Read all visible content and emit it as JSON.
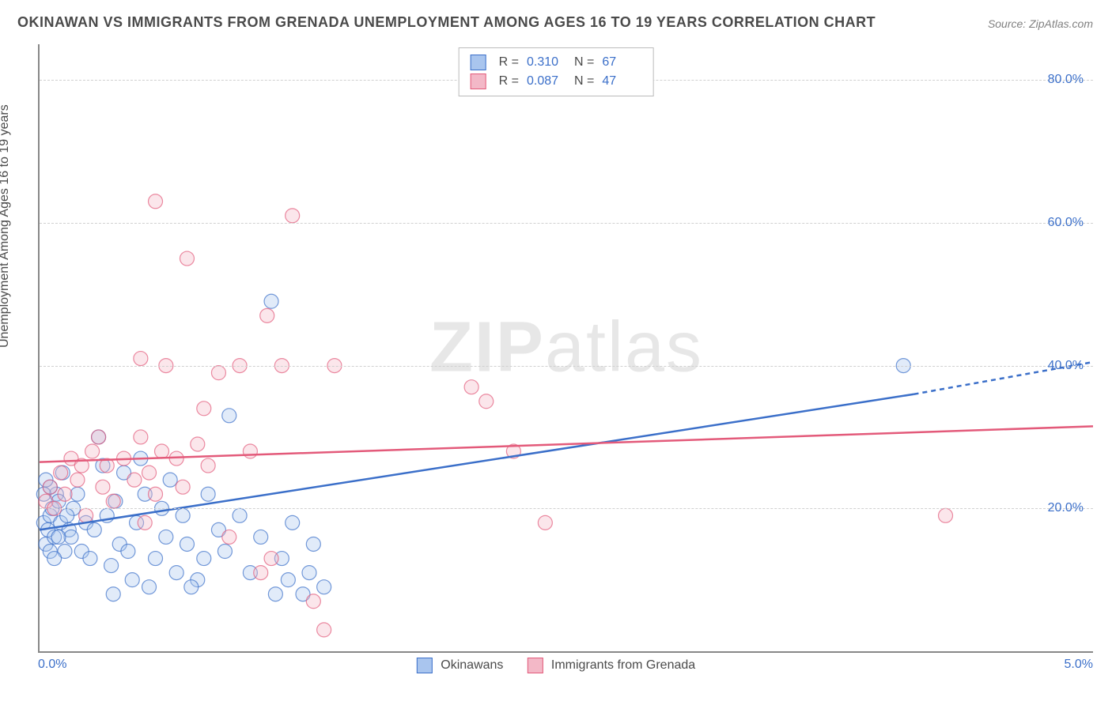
{
  "title": "OKINAWAN VS IMMIGRANTS FROM GRENADA UNEMPLOYMENT AMONG AGES 16 TO 19 YEARS CORRELATION CHART",
  "source": "Source: ZipAtlas.com",
  "watermark": "ZIPatlas",
  "ylabel": "Unemployment Among Ages 16 to 19 years",
  "chart": {
    "type": "scatter",
    "background_color": "#ffffff",
    "grid_color": "#d0d0d0",
    "axis_color": "#888888",
    "text_color": "#4a4a4a",
    "tick_color": "#3b6fc9",
    "xlim": [
      0.0,
      5.0
    ],
    "ylim": [
      0.0,
      85.0
    ],
    "x_ticks": [
      {
        "value": 0.0,
        "label": "0.0%"
      },
      {
        "value": 5.0,
        "label": "5.0%"
      }
    ],
    "y_ticks": [
      {
        "value": 20.0,
        "label": "20.0%"
      },
      {
        "value": 40.0,
        "label": "40.0%"
      },
      {
        "value": 60.0,
        "label": "60.0%"
      },
      {
        "value": 80.0,
        "label": "80.0%"
      }
    ],
    "marker_radius": 9,
    "marker_fill_opacity": 0.35,
    "marker_stroke_width": 1.2,
    "trendline_width": 2.5,
    "series": [
      {
        "name": "Okinawans",
        "color": "#3b6fc9",
        "fill": "#a9c5ee",
        "R": "0.310",
        "N": "67",
        "trend": {
          "x1": 0.0,
          "y1": 17.0,
          "x2": 4.15,
          "y2": 36.0,
          "x2_dash": 5.0,
          "y2_dash": 40.5
        },
        "points": [
          [
            0.02,
            18
          ],
          [
            0.04,
            17
          ],
          [
            0.05,
            19
          ],
          [
            0.03,
            15
          ],
          [
            0.06,
            20
          ],
          [
            0.08,
            22
          ],
          [
            0.1,
            18
          ],
          [
            0.07,
            16
          ],
          [
            0.09,
            21
          ],
          [
            0.05,
            23
          ],
          [
            0.12,
            14
          ],
          [
            0.14,
            17
          ],
          [
            0.16,
            20
          ],
          [
            0.11,
            25
          ],
          [
            0.13,
            19
          ],
          [
            0.15,
            16
          ],
          [
            0.18,
            22
          ],
          [
            0.2,
            14
          ],
          [
            0.22,
            18
          ],
          [
            0.24,
            13
          ],
          [
            0.26,
            17
          ],
          [
            0.28,
            30
          ],
          [
            0.3,
            26
          ],
          [
            0.32,
            19
          ],
          [
            0.34,
            12
          ],
          [
            0.36,
            21
          ],
          [
            0.38,
            15
          ],
          [
            0.4,
            25
          ],
          [
            0.42,
            14
          ],
          [
            0.44,
            10
          ],
          [
            0.46,
            18
          ],
          [
            0.48,
            27
          ],
          [
            0.5,
            22
          ],
          [
            0.55,
            13
          ],
          [
            0.58,
            20
          ],
          [
            0.6,
            16
          ],
          [
            0.62,
            24
          ],
          [
            0.65,
            11
          ],
          [
            0.68,
            19
          ],
          [
            0.7,
            15
          ],
          [
            0.75,
            10
          ],
          [
            0.78,
            13
          ],
          [
            0.8,
            22
          ],
          [
            0.85,
            17
          ],
          [
            0.88,
            14
          ],
          [
            0.9,
            33
          ],
          [
            0.95,
            19
          ],
          [
            1.0,
            11
          ],
          [
            1.05,
            16
          ],
          [
            1.1,
            49
          ],
          [
            1.12,
            8
          ],
          [
            1.15,
            13
          ],
          [
            1.18,
            10
          ],
          [
            1.2,
            18
          ],
          [
            1.25,
            8
          ],
          [
            1.28,
            11
          ],
          [
            1.3,
            15
          ],
          [
            1.35,
            9
          ],
          [
            0.35,
            8
          ],
          [
            0.52,
            9
          ],
          [
            0.72,
            9
          ],
          [
            0.05,
            14
          ],
          [
            0.02,
            22
          ],
          [
            0.03,
            24
          ],
          [
            0.07,
            13
          ],
          [
            0.09,
            16
          ],
          [
            4.1,
            40
          ]
        ]
      },
      {
        "name": "Immigrants from Grenada",
        "color": "#e35a7a",
        "fill": "#f3b8c7",
        "R": "0.087",
        "N": "47",
        "trend": {
          "x1": 0.0,
          "y1": 26.5,
          "x2": 5.0,
          "y2": 31.5,
          "x2_dash": 5.0,
          "y2_dash": 31.5
        },
        "points": [
          [
            0.03,
            21
          ],
          [
            0.05,
            23
          ],
          [
            0.07,
            20
          ],
          [
            0.1,
            25
          ],
          [
            0.12,
            22
          ],
          [
            0.15,
            27
          ],
          [
            0.18,
            24
          ],
          [
            0.2,
            26
          ],
          [
            0.22,
            19
          ],
          [
            0.25,
            28
          ],
          [
            0.28,
            30
          ],
          [
            0.3,
            23
          ],
          [
            0.32,
            26
          ],
          [
            0.35,
            21
          ],
          [
            0.4,
            27
          ],
          [
            0.45,
            24
          ],
          [
            0.48,
            30
          ],
          [
            0.5,
            18
          ],
          [
            0.52,
            25
          ],
          [
            0.55,
            22
          ],
          [
            0.58,
            28
          ],
          [
            0.6,
            40
          ],
          [
            0.65,
            27
          ],
          [
            0.68,
            23
          ],
          [
            0.7,
            55
          ],
          [
            0.75,
            29
          ],
          [
            0.78,
            34
          ],
          [
            0.8,
            26
          ],
          [
            0.85,
            39
          ],
          [
            0.9,
            16
          ],
          [
            0.95,
            40
          ],
          [
            1.0,
            28
          ],
          [
            1.05,
            11
          ],
          [
            1.08,
            47
          ],
          [
            1.1,
            13
          ],
          [
            1.15,
            40
          ],
          [
            1.2,
            61
          ],
          [
            0.55,
            63
          ],
          [
            0.48,
            41
          ],
          [
            1.3,
            7
          ],
          [
            1.35,
            3
          ],
          [
            1.4,
            40
          ],
          [
            2.05,
            37
          ],
          [
            2.12,
            35
          ],
          [
            2.25,
            28
          ],
          [
            2.4,
            18
          ],
          [
            4.3,
            19
          ]
        ]
      }
    ]
  },
  "legend_bottom": [
    {
      "swatch_fill": "#a9c5ee",
      "swatch_border": "#3b6fc9",
      "label": "Okinawans"
    },
    {
      "swatch_fill": "#f3b8c7",
      "swatch_border": "#e35a7a",
      "label": "Immigrants from Grenada"
    }
  ]
}
